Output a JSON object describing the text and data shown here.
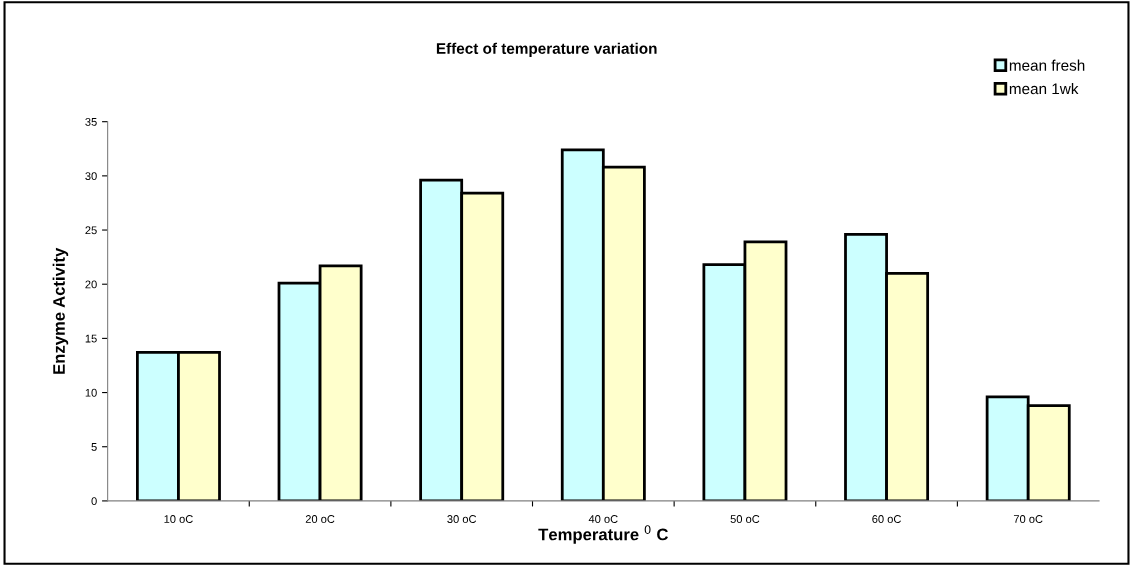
{
  "chart_data": {
    "type": "bar",
    "title": "Effect of temperature variation",
    "xlabel": "Temperature $^{0}$ C",
    "ylabel": "Enzyme Activity",
    "categories": [
      "10 oC",
      "20 oC",
      "30 oC",
      "40 oC",
      "50 oC",
      "60 oC",
      "70 oC"
    ],
    "series": [
      {
        "name": "mean fresh",
        "color": "#ccffff",
        "values": [
          13.7,
          20.1,
          29.6,
          32.4,
          21.8,
          24.6,
          9.6
        ]
      },
      {
        "name": "mean 1wk",
        "color": "#ffffcc",
        "values": [
          13.7,
          21.7,
          28.4,
          30.8,
          23.9,
          21.0,
          8.8
        ]
      }
    ],
    "ylim": [
      0,
      35
    ],
    "yticks": [
      0,
      5,
      10,
      15,
      20,
      25,
      30,
      35
    ],
    "grid": false,
    "legend": "top right"
  }
}
